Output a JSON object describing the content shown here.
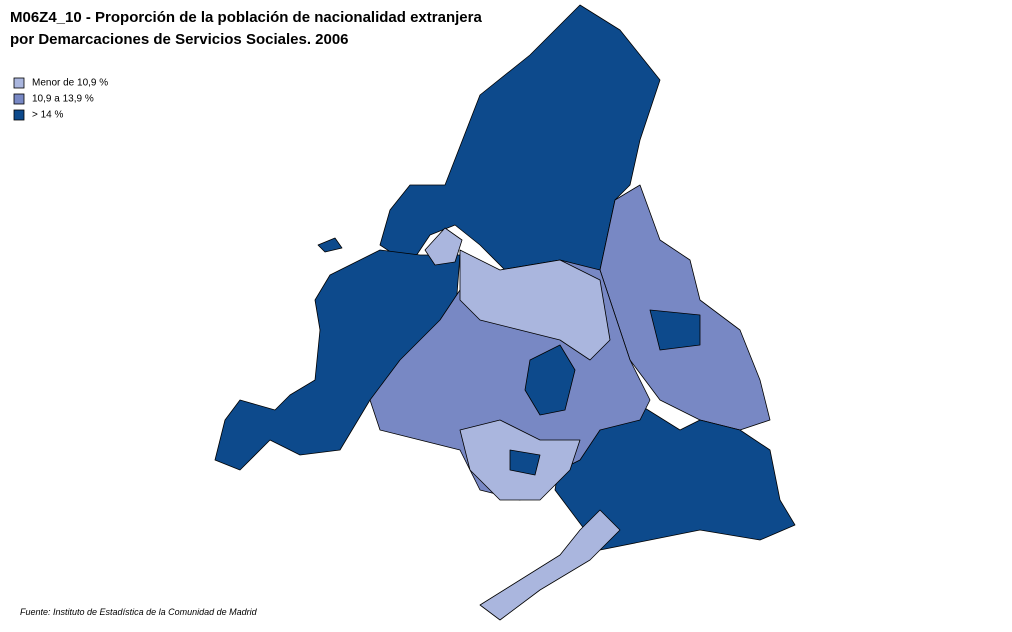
{
  "title": [
    "M06Z4_10 - Proporción de la población de nacionalidad extranjera",
    "por Demarcaciones de Servicios Sociales. 2006"
  ],
  "legend": [
    {
      "label": "Menor de 10,9 %",
      "color": "#aab6de"
    },
    {
      "label": "10,9  a 13,9 %",
      "color": "#7888c4"
    },
    {
      "label": "> 14 %",
      "color": "#0d4a8c"
    }
  ],
  "source": "Fuente: Instituto de Estadística de la Comunidad de Madrid"
}
